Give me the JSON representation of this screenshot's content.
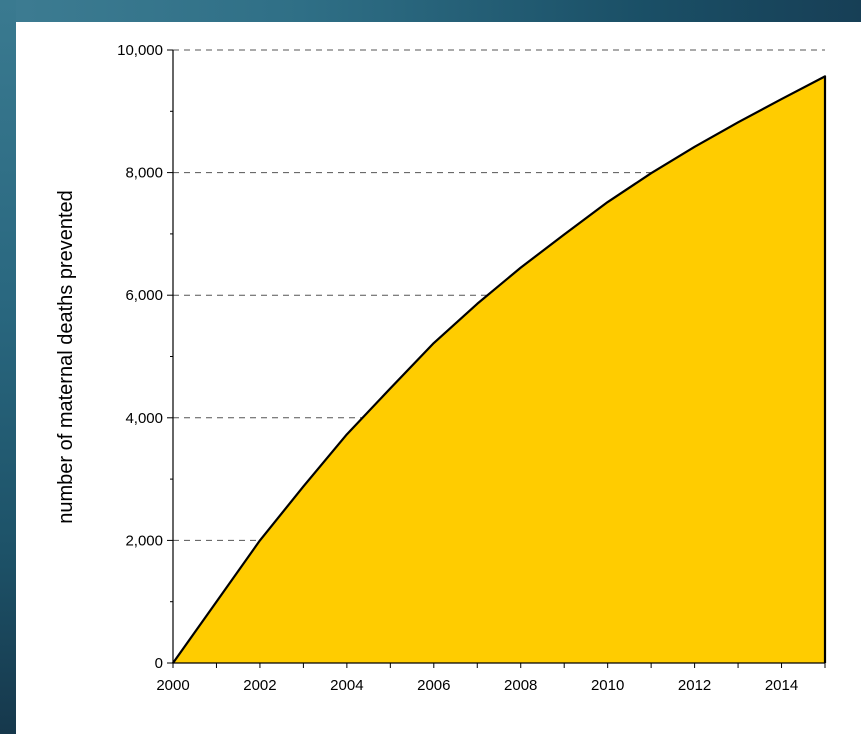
{
  "chart_data": {
    "type": "area",
    "title": "",
    "xlabel": "",
    "ylabel": "number of maternal deaths prevented",
    "x": [
      2000,
      2001,
      2002,
      2003,
      2004,
      2005,
      2006,
      2007,
      2008,
      2009,
      2010,
      2011,
      2012,
      2013,
      2014,
      2015
    ],
    "series": [
      {
        "values": [
          0,
          1000,
          2000,
          2880,
          3730,
          4480,
          5220,
          5860,
          6450,
          6990,
          7520,
          7990,
          8420,
          8820,
          9200,
          9570
        ]
      }
    ],
    "xlim": [
      2000,
      2015
    ],
    "ylim": [
      0,
      10000
    ],
    "x_ticks": [
      "2000",
      "2002",
      "2004",
      "2006",
      "2008",
      "2010",
      "2012",
      "2014"
    ],
    "y_ticks": [
      "0",
      "2,000",
      "4,000",
      "6,000",
      "8,000",
      "10,000"
    ],
    "grid": "horizontal dashed",
    "legend": "none",
    "colors": {
      "fill": "#ffcc00",
      "line": "#000000",
      "grid": "#555555"
    }
  }
}
